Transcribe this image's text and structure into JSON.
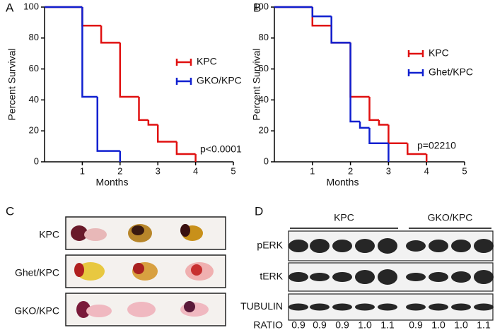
{
  "chart_data": [
    {
      "type": "step",
      "panel": "A",
      "y_label": "Percent Survival",
      "x_label": "Months",
      "xlim": [
        0,
        5
      ],
      "xticks": [
        1,
        2,
        3,
        4,
        5
      ],
      "ylim": [
        0,
        100
      ],
      "yticks": [
        0,
        20,
        40,
        60,
        80,
        100
      ],
      "annotation": "p<0.0001",
      "series": [
        {
          "name": "KPC",
          "color": "#e01010",
          "x": [
            0,
            1,
            1.5,
            2,
            2.5,
            2.75,
            3,
            3.5,
            4
          ],
          "values": [
            100,
            88,
            77,
            42,
            27,
            24,
            13,
            5,
            0
          ]
        },
        {
          "name": "GKO/KPC",
          "color": "#1020d0",
          "x": [
            0,
            1,
            1.4,
            2
          ],
          "values": [
            100,
            42,
            7,
            0
          ]
        }
      ]
    },
    {
      "type": "step",
      "panel": "B",
      "y_label": "Percent Survival",
      "x_label": "Months",
      "xlim": [
        0,
        5
      ],
      "xticks": [
        1,
        2,
        3,
        4,
        5
      ],
      "ylim": [
        0,
        100
      ],
      "yticks": [
        0,
        20,
        40,
        60,
        80,
        100
      ],
      "annotation": "p=02210",
      "series": [
        {
          "name": "KPC",
          "color": "#e01010",
          "x": [
            0,
            1,
            1.5,
            2,
            2.5,
            2.75,
            3,
            3.5,
            4
          ],
          "values": [
            100,
            88,
            77,
            42,
            27,
            24,
            12,
            5,
            0
          ]
        },
        {
          "name": "Ghet/KPC",
          "color": "#1020d0",
          "x": [
            0,
            1,
            1.5,
            2,
            2.25,
            2.5,
            3
          ],
          "values": [
            100,
            94,
            77,
            26,
            22,
            12,
            0
          ]
        }
      ]
    }
  ],
  "panel_c": {
    "label": "C",
    "rows": [
      "KPC",
      "Ghet/KPC",
      "GKO/KPC"
    ]
  },
  "panel_d": {
    "label": "D",
    "groups": [
      "KPC",
      "GKO/KPC"
    ],
    "rows": [
      "pERK",
      "tERK",
      "TUBULIN"
    ],
    "ratio_label": "RATIO",
    "ratios": [
      "0.9",
      "0.9",
      "0.9",
      "1.0",
      "1.1",
      "0.9",
      "1.0",
      "1.0",
      "1.1"
    ]
  }
}
